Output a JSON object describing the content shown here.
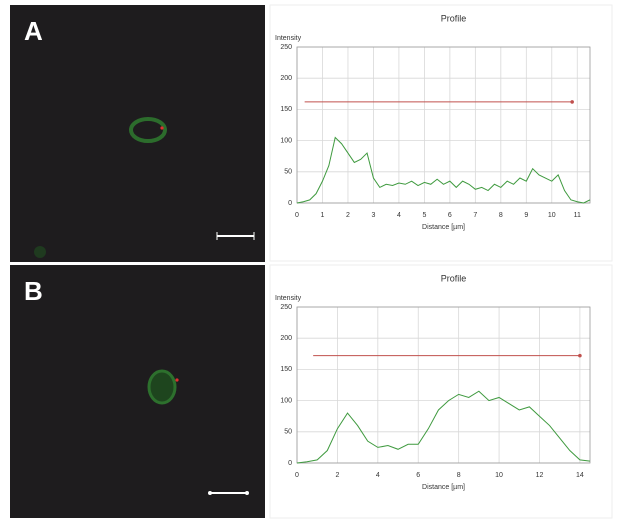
{
  "chart_data": [
    {
      "type": "line",
      "panel_label": "A",
      "title": "Profile",
      "y_label": "Intensity",
      "x_label": "Distance [µm]",
      "x": [
        0,
        0.25,
        0.5,
        0.75,
        1,
        1.25,
        1.5,
        1.75,
        2,
        2.25,
        2.5,
        2.75,
        3,
        3.25,
        3.5,
        3.75,
        4,
        4.25,
        4.5,
        4.75,
        5,
        5.25,
        5.5,
        5.75,
        6,
        6.25,
        6.5,
        6.75,
        7,
        7.25,
        7.5,
        7.75,
        8,
        8.25,
        8.5,
        8.75,
        9,
        9.25,
        9.5,
        9.75,
        10,
        10.25,
        10.5,
        10.75,
        11,
        11.25,
        11.5
      ],
      "values": [
        0,
        2,
        5,
        15,
        35,
        60,
        105,
        95,
        80,
        65,
        70,
        80,
        40,
        25,
        30,
        28,
        32,
        30,
        35,
        28,
        33,
        30,
        38,
        30,
        35,
        25,
        35,
        30,
        22,
        25,
        20,
        30,
        25,
        35,
        30,
        40,
        35,
        55,
        45,
        40,
        35,
        45,
        20,
        5,
        2,
        0,
        5
      ],
      "color": "#3f9a3f",
      "reference_line": {
        "x": [
          0.3,
          10.8
        ],
        "y": 162,
        "color": "#c0504d"
      },
      "xlim": [
        0,
        11.5
      ],
      "xticks": [
        0,
        1,
        2,
        3,
        4,
        5,
        6,
        7,
        8,
        9,
        10,
        11
      ],
      "ylim": [
        0,
        250
      ],
      "yticks": [
        0,
        50,
        100,
        150,
        200,
        250
      ],
      "grid": true
    },
    {
      "type": "line",
      "panel_label": "B",
      "title": "Profile",
      "y_label": "Intensity",
      "x_label": "Distance [µm]",
      "x": [
        0,
        0.5,
        1,
        1.5,
        2,
        2.5,
        3,
        3.5,
        4,
        4.5,
        5,
        5.5,
        6,
        6.5,
        7,
        7.5,
        8,
        8.5,
        9,
        9.5,
        10,
        10.5,
        11,
        11.5,
        12,
        12.5,
        13,
        13.5,
        14,
        14.5
      ],
      "values": [
        0,
        2,
        5,
        20,
        55,
        80,
        60,
        35,
        25,
        28,
        22,
        30,
        30,
        55,
        85,
        100,
        110,
        105,
        115,
        100,
        105,
        95,
        85,
        90,
        75,
        60,
        40,
        20,
        5,
        3
      ],
      "color": "#3f9a3f",
      "reference_line": {
        "x": [
          0.8,
          14
        ],
        "y": 172,
        "color": "#c0504d"
      },
      "xlim": [
        0,
        14.5
      ],
      "xticks": [
        0,
        2,
        4,
        6,
        8,
        10,
        12,
        14
      ],
      "ylim": [
        0,
        250
      ],
      "yticks": [
        0,
        50,
        100,
        150,
        200,
        250
      ],
      "grid": true
    }
  ]
}
